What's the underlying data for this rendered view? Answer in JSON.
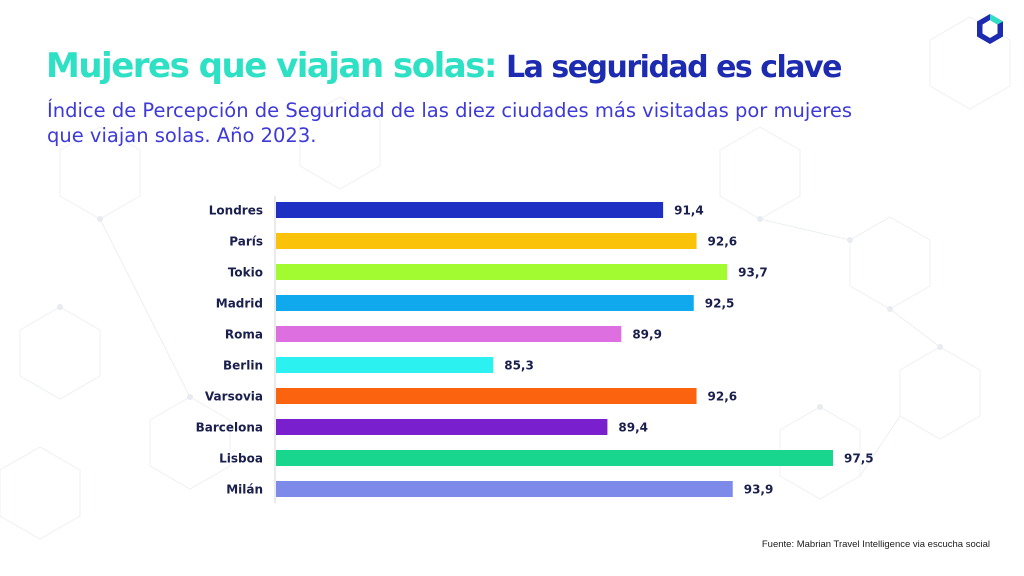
{
  "header": {
    "title_part1": "Mujeres que viajan solas:",
    "title_part2": "La seguridad es clave",
    "subtitle": "Índice de Percepción de Seguridad de las diez ciudades más visitadas por mujeres que viajan solas. Año 2023."
  },
  "footer": {
    "source": "Fuente: Mabrian Travel Intelligence via escucha social"
  },
  "colors": {
    "title_accent": "#2ee0c4",
    "title_main": "#1c2bb0",
    "subtitle": "#3d3ad8",
    "label_text": "#1a1f4d"
  },
  "chart_data": {
    "type": "bar",
    "orientation": "horizontal",
    "categories": [
      "Londres",
      "París",
      "Tokio",
      "Madrid",
      "Roma",
      "Berlin",
      "Varsovia",
      "Barcelona",
      "Lisboa",
      "Milán"
    ],
    "values": [
      91.4,
      92.6,
      93.7,
      92.5,
      89.9,
      85.3,
      92.6,
      89.4,
      97.5,
      93.9
    ],
    "value_labels": [
      "91,4",
      "92,6",
      "93,7",
      "92,5",
      "89,9",
      "85,3",
      "92,6",
      "89,4",
      "97,5",
      "93,9"
    ],
    "bar_colors": [
      "#1e2fc4",
      "#fbc20a",
      "#a2fb31",
      "#11a9ed",
      "#de6fe0",
      "#2bf1f1",
      "#fc630f",
      "#7a1fcd",
      "#19d68f",
      "#7d8aea"
    ],
    "xlim": [
      77.5,
      97.5
    ],
    "grid": false
  }
}
